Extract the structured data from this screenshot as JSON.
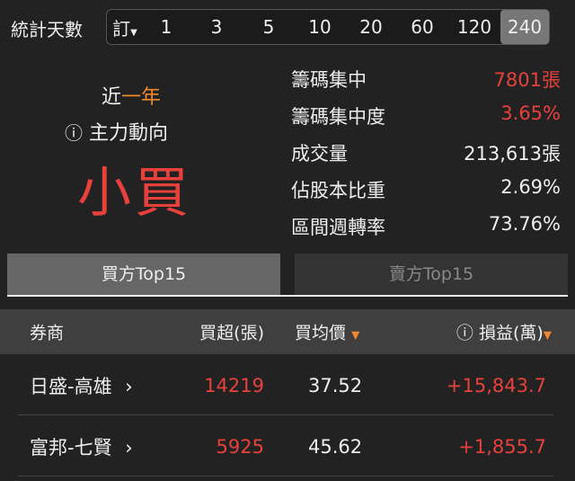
{
  "filter": {
    "label": "統計天數",
    "custom": "訂",
    "options": [
      "1",
      "3",
      "5",
      "10",
      "20",
      "60",
      "120",
      "240"
    ],
    "selected": "240"
  },
  "summary": {
    "period_prefix": "近",
    "period": "一年",
    "main_label": "主力動向",
    "main_value": "小買"
  },
  "stats": [
    {
      "label": "籌碼集中",
      "value": "7801張",
      "color": "red"
    },
    {
      "label": "籌碼集中度",
      "value": "3.65%",
      "color": "red"
    },
    {
      "label": "成交量",
      "value": "213,613張",
      "color": "white"
    },
    {
      "label": "佔股本比重",
      "value": "2.69%",
      "color": "white"
    },
    {
      "label": "區間週轉率",
      "value": "73.76%",
      "color": "white"
    }
  ],
  "tabs": [
    {
      "label": "買方Top15",
      "active": true
    },
    {
      "label": "賣方Top15",
      "active": false
    }
  ],
  "table": {
    "headers": [
      "券商",
      "買超(張)",
      "買均價",
      "損益(萬)"
    ],
    "rows": [
      {
        "broker": "日盛-高雄",
        "net": "14219",
        "avg": "37.52",
        "pl": "+15,843.7"
      },
      {
        "broker": "富邦-七賢",
        "net": "5925",
        "avg": "45.62",
        "pl": "+1,855.7"
      }
    ]
  },
  "colors": {
    "red": "#e8413b",
    "orange": "#f0892d",
    "bg": "#222222"
  }
}
